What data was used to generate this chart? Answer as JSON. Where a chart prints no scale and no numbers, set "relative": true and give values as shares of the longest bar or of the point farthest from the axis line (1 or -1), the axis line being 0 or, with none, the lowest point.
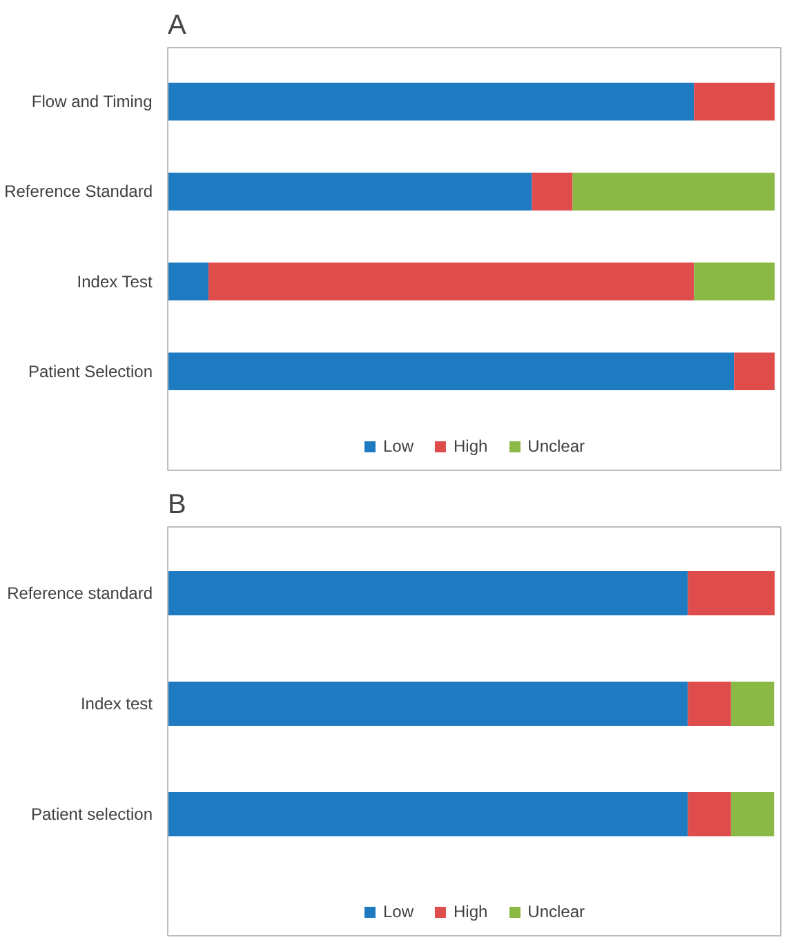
{
  "chart_data": [
    {
      "type": "bar",
      "title": "A",
      "orientation": "horizontal",
      "stacked": true,
      "relative": true,
      "grid": false,
      "legend": "bottom",
      "categories": [
        "Flow and Timing",
        "Reference Standard",
        "Index Test",
        "Patient Selection"
      ],
      "series": [
        {
          "name": "Low",
          "color": "#1f7bc1",
          "values": [
            0.867,
            0.6,
            0.067,
            0.933
          ]
        },
        {
          "name": "High",
          "color": "#df4c4c",
          "values": [
            0.133,
            0.067,
            0.8,
            0.067
          ]
        },
        {
          "name": "Unclear",
          "color": "#8ab946",
          "values": [
            0,
            0.333,
            0.133,
            0
          ]
        }
      ]
    },
    {
      "type": "bar",
      "title": "B",
      "orientation": "horizontal",
      "stacked": true,
      "relative": true,
      "grid": false,
      "legend": "bottom",
      "categories": [
        "Reference standard",
        "Index test",
        "Patient selection"
      ],
      "series": [
        {
          "name": "Low",
          "color": "#1f7bc1",
          "values": [
            0.857,
            0.857,
            0.857
          ]
        },
        {
          "name": "High",
          "color": "#df4c4c",
          "values": [
            0.143,
            0.071,
            0.071
          ]
        },
        {
          "name": "Unclear",
          "color": "#8ab946",
          "values": [
            0,
            0.071,
            0.071
          ]
        }
      ]
    }
  ]
}
